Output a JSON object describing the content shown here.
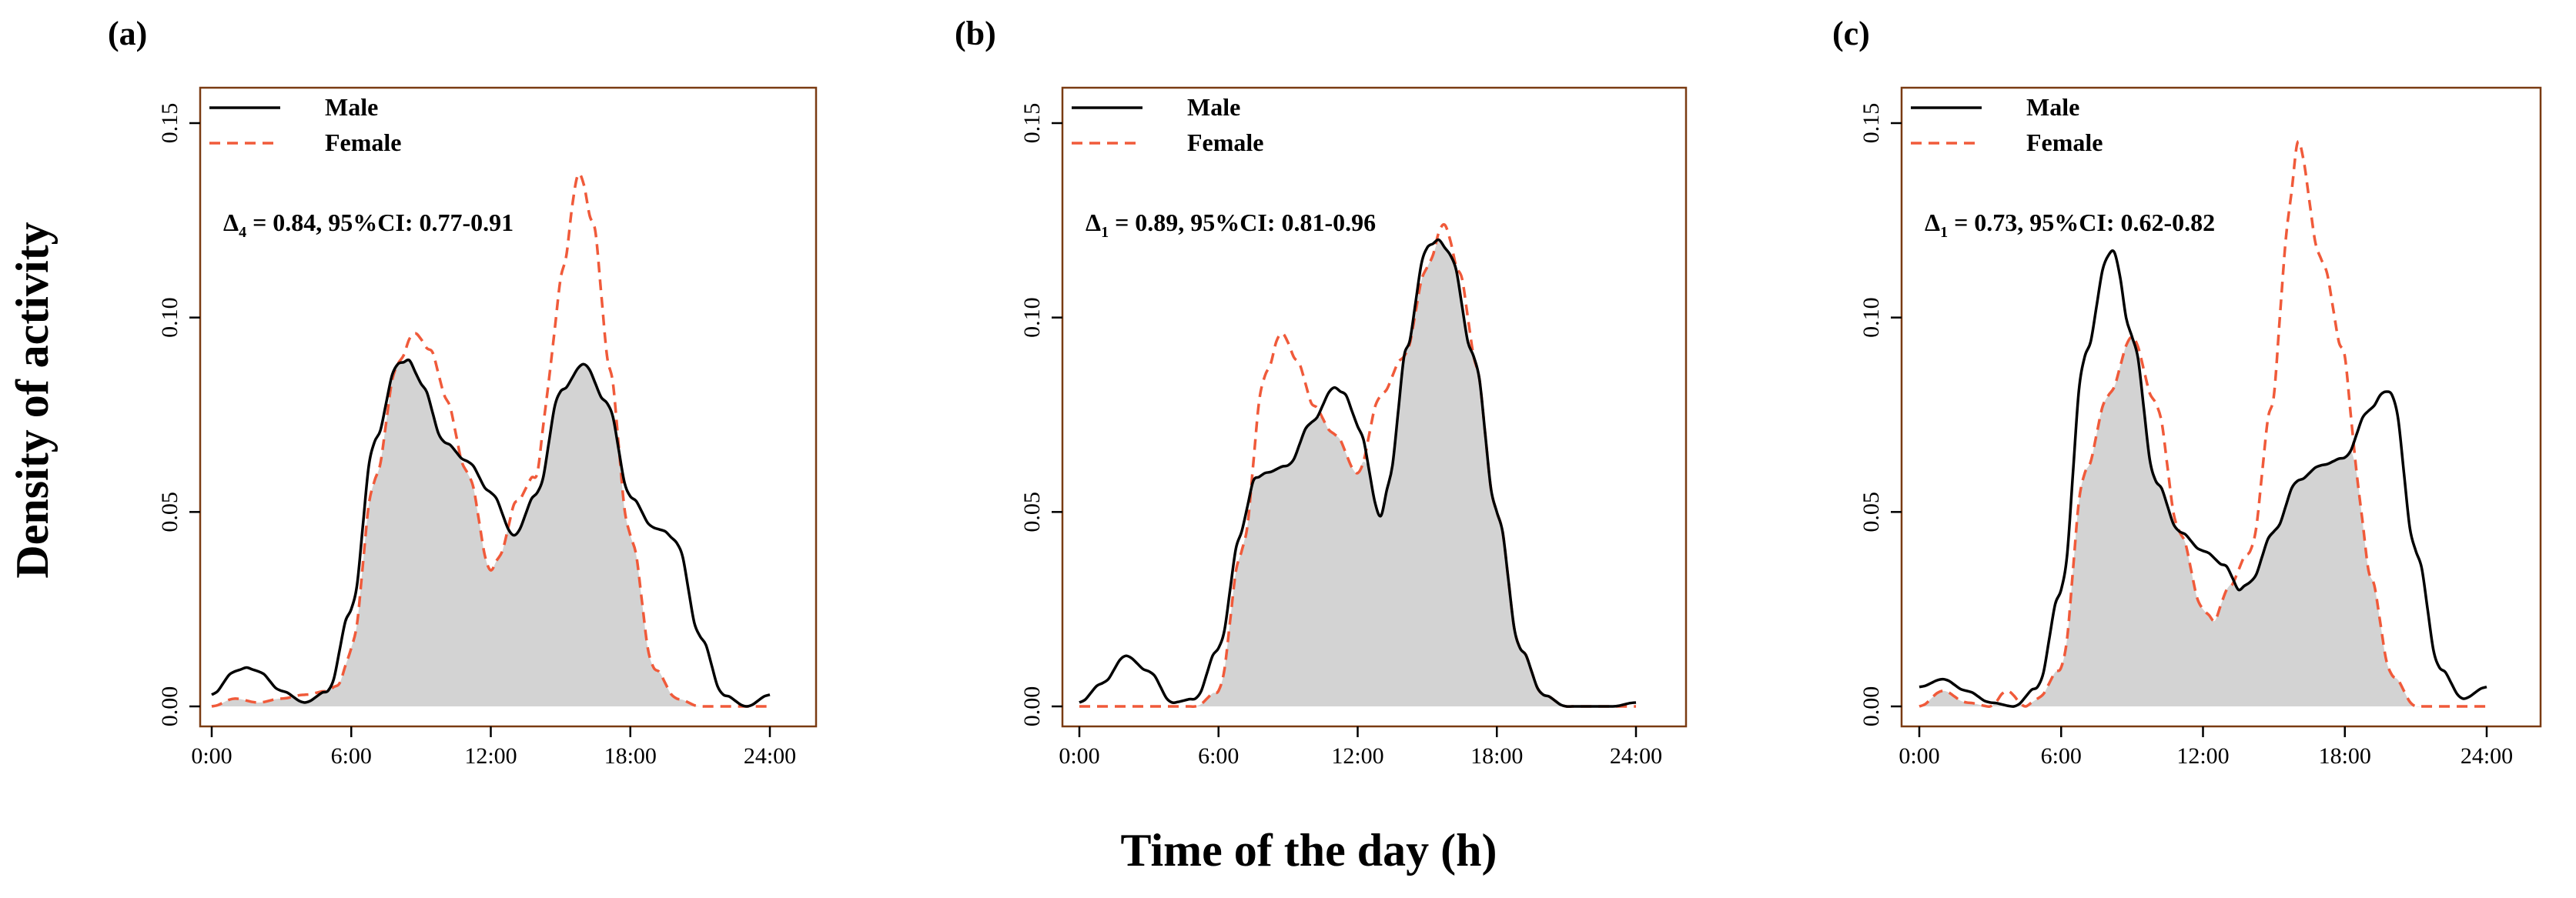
{
  "figure": {
    "ylabel": "Density of activity",
    "xlabel": "Time of the day (h)"
  },
  "colors": {
    "male": "#000000",
    "female": "#f05a3a",
    "overlap_fill": "#d3d3d3",
    "axis": "#000000",
    "frame": "#7a3b12"
  },
  "chart_data": [
    {
      "type": "line",
      "panel_label": "(a)",
      "annotation": {
        "prefix": "Δ",
        "subscript": "4",
        "text": " = 0.84, 95%CI: 0.77-0.91"
      },
      "legend": [
        "Male",
        "Female"
      ],
      "legend_position": "top-left",
      "xlabel": "Time of the day (h)",
      "ylabel": "Density of activity",
      "xlim": [
        0,
        24
      ],
      "ylim": [
        0,
        0.15
      ],
      "xticks": [
        0,
        6,
        12,
        18,
        24
      ],
      "xtick_labels": [
        "0:00",
        "6:00",
        "12:00",
        "18:00",
        "24:00"
      ],
      "yticks": [
        0,
        0.05,
        0.1,
        0.15
      ],
      "ytick_labels": [
        "0.00",
        "0.05",
        "0.10",
        "0.15"
      ],
      "shaded_overlap": true,
      "series": [
        {
          "name": "Male",
          "style": "solid",
          "x": [
            0,
            1,
            1.5,
            2,
            3,
            4,
            5,
            6,
            7,
            8,
            8.5,
            9,
            10,
            11,
            12,
            13,
            14,
            15,
            16,
            17,
            18,
            19,
            19.5,
            20,
            21,
            22,
            23,
            24
          ],
          "y": [
            0.003,
            0.009,
            0.01,
            0.009,
            0.004,
            0.001,
            0.004,
            0.025,
            0.068,
            0.088,
            0.089,
            0.083,
            0.068,
            0.063,
            0.055,
            0.044,
            0.055,
            0.081,
            0.088,
            0.078,
            0.054,
            0.046,
            0.045,
            0.042,
            0.018,
            0.003,
            0.0,
            0.003
          ]
        },
        {
          "name": "Female",
          "style": "dashed",
          "x": [
            0,
            1,
            2,
            3,
            4,
            5,
            5.5,
            6,
            7,
            8,
            8.7,
            9.5,
            10,
            11,
            12,
            12.5,
            13,
            14,
            14.5,
            15,
            15.8,
            16.5,
            17,
            18,
            19,
            20,
            21,
            22,
            23,
            24
          ],
          "y": [
            0.0,
            0.002,
            0.001,
            0.002,
            0.003,
            0.004,
            0.006,
            0.015,
            0.058,
            0.088,
            0.096,
            0.091,
            0.08,
            0.06,
            0.035,
            0.04,
            0.052,
            0.06,
            0.084,
            0.11,
            0.137,
            0.122,
            0.09,
            0.044,
            0.01,
            0.002,
            0.0,
            0.0,
            0.0,
            0.0
          ]
        }
      ]
    },
    {
      "type": "line",
      "panel_label": "(b)",
      "annotation": {
        "prefix": "Δ",
        "subscript": "1",
        "text": " = 0.89, 95%CI: 0.81-0.96"
      },
      "legend": [
        "Male",
        "Female"
      ],
      "legend_position": "top-left",
      "xlabel": "Time of the day (h)",
      "ylabel": "Density of activity",
      "xlim": [
        0,
        24
      ],
      "ylim": [
        0,
        0.15
      ],
      "xticks": [
        0,
        6,
        12,
        18,
        24
      ],
      "xtick_labels": [
        "0:00",
        "6:00",
        "12:00",
        "18:00",
        "24:00"
      ],
      "yticks": [
        0,
        0.05,
        0.1,
        0.15
      ],
      "ytick_labels": [
        "0.00",
        "0.05",
        "0.10",
        "0.15"
      ],
      "shaded_overlap": true,
      "series": [
        {
          "name": "Male",
          "style": "solid",
          "x": [
            0,
            1,
            2,
            3,
            4,
            5,
            6,
            7,
            7.5,
            8,
            9,
            10,
            11,
            11.5,
            12,
            13,
            13.5,
            14,
            15,
            15.5,
            16,
            17,
            18,
            19,
            20,
            21,
            22,
            23,
            24
          ],
          "y": [
            0.001,
            0.006,
            0.013,
            0.009,
            0.001,
            0.002,
            0.015,
            0.045,
            0.058,
            0.06,
            0.062,
            0.073,
            0.082,
            0.08,
            0.072,
            0.049,
            0.062,
            0.09,
            0.118,
            0.12,
            0.116,
            0.09,
            0.05,
            0.015,
            0.003,
            0.0,
            0.0,
            0.0,
            0.001
          ]
        },
        {
          "name": "Female",
          "style": "dashed",
          "x": [
            0,
            2,
            4,
            5,
            6,
            7,
            8,
            8.7,
            9.5,
            10,
            11,
            12,
            13,
            14,
            15,
            15.7,
            16.5,
            17,
            18,
            19,
            20,
            21,
            22,
            24
          ],
          "y": [
            0.0,
            0.0,
            0.0,
            0.0,
            0.004,
            0.04,
            0.085,
            0.096,
            0.088,
            0.078,
            0.07,
            0.06,
            0.08,
            0.09,
            0.113,
            0.124,
            0.11,
            0.09,
            0.05,
            0.015,
            0.003,
            0.0,
            0.0,
            0.0
          ]
        }
      ]
    },
    {
      "type": "line",
      "panel_label": "(c)",
      "annotation": {
        "prefix": "Δ",
        "subscript": "1",
        "text": " = 0.73, 95%CI: 0.62-0.82"
      },
      "legend": [
        "Male",
        "Female"
      ],
      "legend_position": "top-left",
      "xlabel": "Time of the day (h)",
      "ylabel": "Density of activity",
      "xlim": [
        0,
        24
      ],
      "ylim": [
        0,
        0.15
      ],
      "xticks": [
        0,
        6,
        12,
        18,
        24
      ],
      "xtick_labels": [
        "0:00",
        "6:00",
        "12:00",
        "18:00",
        "24:00"
      ],
      "yticks": [
        0,
        0.05,
        0.1,
        0.15
      ],
      "ytick_labels": [
        "0.00",
        "0.05",
        "0.10",
        "0.15"
      ],
      "shaded_overlap": true,
      "series": [
        {
          "name": "Male",
          "style": "solid",
          "x": [
            0,
            1,
            2,
            3,
            4,
            5,
            6,
            7,
            8,
            8.2,
            9,
            10,
            11,
            12,
            13,
            13.5,
            14,
            15,
            16,
            17,
            18,
            19,
            19.7,
            20,
            21,
            22,
            23,
            24
          ],
          "y": [
            0.005,
            0.007,
            0.004,
            0.001,
            0.0,
            0.005,
            0.03,
            0.09,
            0.116,
            0.117,
            0.095,
            0.058,
            0.045,
            0.04,
            0.036,
            0.03,
            0.032,
            0.045,
            0.058,
            0.062,
            0.064,
            0.076,
            0.081,
            0.08,
            0.04,
            0.01,
            0.002,
            0.005
          ]
        },
        {
          "name": "Female",
          "style": "dashed",
          "x": [
            0,
            1,
            2,
            3,
            3.7,
            4.5,
            5,
            6,
            7,
            8,
            9,
            10,
            11,
            12,
            12.5,
            13,
            14,
            15,
            15.5,
            16,
            17,
            18,
            18.5,
            19,
            20,
            21,
            22,
            23,
            24
          ],
          "y": [
            0.0,
            0.004,
            0.001,
            0.0,
            0.004,
            0.0,
            0.002,
            0.01,
            0.06,
            0.08,
            0.095,
            0.078,
            0.045,
            0.025,
            0.022,
            0.03,
            0.04,
            0.08,
            0.12,
            0.145,
            0.115,
            0.09,
            0.06,
            0.035,
            0.008,
            0.0,
            0.0,
            0.0,
            0.0
          ]
        }
      ]
    }
  ]
}
